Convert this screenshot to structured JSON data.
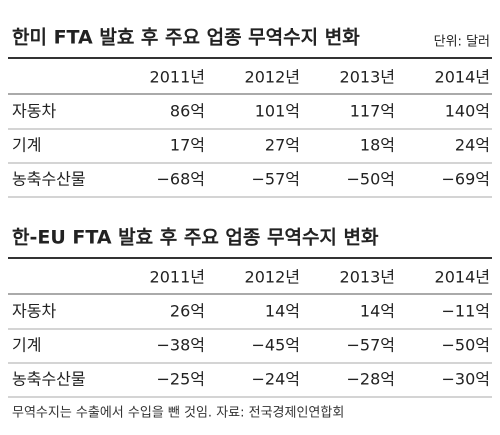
{
  "tables": [
    {
      "title": "한미 FTA 발효 후 주요 업종 무역수지 변화",
      "unit": "단위: 달러",
      "columns": [
        "2011년",
        "2012년",
        "2013년",
        "2014년"
      ],
      "rows": [
        [
          "자동차",
          "86억",
          "101억",
          "117억",
          "140억"
        ],
        [
          "기계",
          "17억",
          "27억",
          "18억",
          "24억"
        ],
        [
          "농축수산물",
          "−68억",
          "−57억",
          "−50억",
          "−69억"
        ]
      ]
    },
    {
      "title": "한-EU FTA 발효 후 주요 업종 무역수지 변화",
      "columns": [
        "2011년",
        "2012년",
        "2013년",
        "2014년"
      ],
      "rows": [
        [
          "자동차",
          "26억",
          "14억",
          "14억",
          "−11억"
        ],
        [
          "기계",
          "−38억",
          "−45억",
          "−57억",
          "−50억"
        ],
        [
          "농축수산물",
          "−25억",
          "−24억",
          "−28억",
          "−30억"
        ]
      ]
    }
  ],
  "footnote": "무역수지는 수출에서 수입을 뺀 것임. 자료: 전국경제인연합회"
}
